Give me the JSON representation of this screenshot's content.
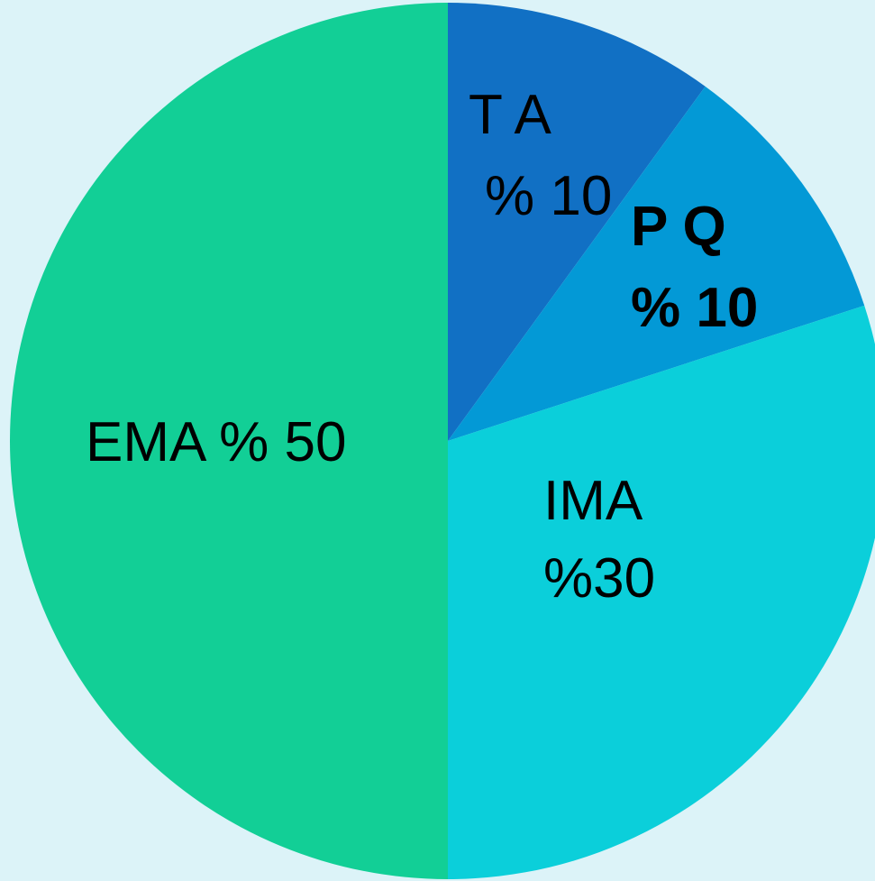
{
  "chart_data": {
    "type": "pie",
    "title": "",
    "start_angle_deg": 0,
    "direction": "clockwise",
    "slices": [
      {
        "label_line1": "T A",
        "label_line2": "% 10",
        "value": 10,
        "color": "#1170c4",
        "bold": false
      },
      {
        "label_line1": "P Q",
        "label_line2": "% 10",
        "value": 10,
        "color": "#0399d6",
        "bold": true
      },
      {
        "label_line1": "IMA",
        "label_line2": "%30",
        "value": 30,
        "color": "#0bcfda",
        "bold": false
      },
      {
        "label_line1": "EMA % 50",
        "label_line2": "",
        "value": 50,
        "color": "#12cf96",
        "bold": false
      }
    ]
  },
  "colors": {
    "background": "#dcf3f8"
  }
}
